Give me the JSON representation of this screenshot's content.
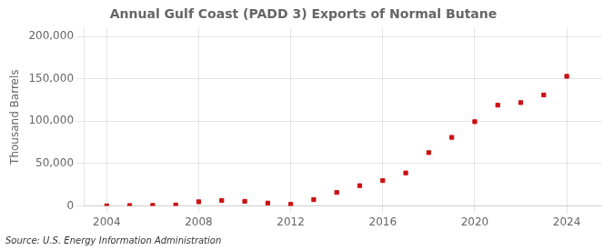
{
  "chart_data": {
    "type": "scatter",
    "title": "Annual Gulf Coast (PADD 3) Exports of Normal Butane",
    "ylabel": "Thousand Barrels",
    "annotation": "Source: U.S. Energy Information Administration",
    "x": [
      2004,
      2005,
      2006,
      2007,
      2008,
      2009,
      2010,
      2011,
      2012,
      2013,
      2014,
      2015,
      2016,
      2017,
      2018,
      2019,
      2020,
      2021,
      2022,
      2023,
      2024
    ],
    "values": [
      200,
      600,
      700,
      1200,
      5000,
      6500,
      5500,
      3500,
      2000,
      7500,
      16000,
      24000,
      30000,
      39000,
      63000,
      81000,
      99500,
      119000,
      122000,
      131000,
      153000
    ],
    "color": "#cc1111",
    "marker": "square",
    "xlim": [
      2003.0,
      2025.5
    ],
    "xticks": [
      2004,
      2008,
      2012,
      2016,
      2020,
      2024
    ],
    "ylim": [
      0,
      210000
    ],
    "yticks": [
      0,
      {
        "value": 50000,
        "label": "50,000"
      },
      {
        "value": 100000,
        "label": "100,000"
      },
      {
        "value": 150000,
        "label": "150,000"
      },
      {
        "value": 200000,
        "label": "200,000"
      }
    ],
    "grid": true
  }
}
